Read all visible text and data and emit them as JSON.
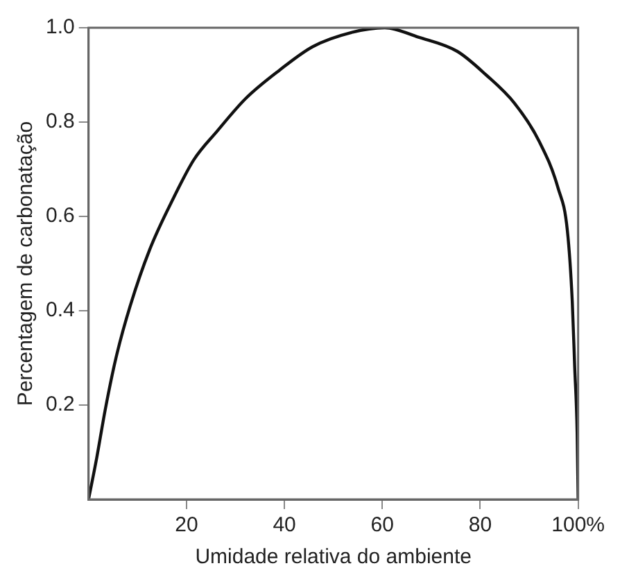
{
  "chart_data": {
    "type": "line",
    "xlabel": "Umidade relativa do ambiente",
    "ylabel": "Percentagem de carbonatação",
    "x": [
      0,
      1.7,
      3.4,
      5.6,
      8.5,
      12.5,
      17.4,
      21.5,
      26.2,
      32.1,
      39,
      45.8,
      53.7,
      60.5,
      67.4,
      75.3,
      81.2,
      87,
      92,
      95.9,
      97.8,
      98.8,
      99.3,
      99.8,
      100
    ],
    "series": [
      {
        "color": "#111111",
        "values": [
          0,
          0.09,
          0.19,
          0.3,
          0.41,
          0.53,
          0.64,
          0.72,
          0.78,
          0.85,
          0.91,
          0.96,
          0.99,
          1.0,
          0.98,
          0.95,
          0.9,
          0.84,
          0.76,
          0.66,
          0.57,
          0.42,
          0.28,
          0.14,
          0
        ]
      }
    ],
    "xlim": [
      0,
      100
    ],
    "xticks": [
      20,
      40,
      60,
      80,
      {
        "value": 100,
        "label": "100%"
      }
    ],
    "ylim": [
      0,
      1
    ],
    "yticks": [
      0.2,
      0.4,
      0.6,
      0.8,
      {
        "value": 1,
        "label": "1.0"
      }
    ],
    "grid": false,
    "legend": false,
    "marker": "none",
    "line_style": "solid"
  }
}
